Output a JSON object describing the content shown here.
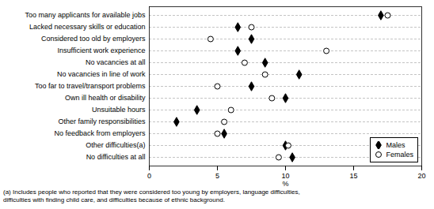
{
  "chart_data": {
    "type": "dot",
    "orientation": "horizontal",
    "categories": [
      "Too many applicants for available jobs",
      "Lacked necessary skills or education",
      "Considered too old by employers",
      "Insufficient work experience",
      "No vacancies at all",
      "No vacancies in line of work",
      "Too far to travel/transport problems",
      "Own ill health or disability",
      "Unsuitable hours",
      "Other family responsibilities",
      "No feedback from employers",
      "Other difficulties(a)",
      "No difficulties at all"
    ],
    "series": [
      {
        "name": "Males",
        "color": "black",
        "marker": "diamond",
        "values": [
          17.0,
          6.5,
          7.5,
          6.5,
          8.5,
          11.0,
          7.5,
          10.0,
          3.5,
          2.0,
          5.5,
          10.0,
          10.5
        ]
      },
      {
        "name": "Females",
        "color": "black",
        "marker": "open_circle",
        "values": [
          17.5,
          7.5,
          4.5,
          13.0,
          7.0,
          8.5,
          5.0,
          9.0,
          6.0,
          5.5,
          5.0,
          10.2,
          9.5
        ]
      }
    ],
    "xlabel": "%",
    "xlim": [
      0,
      20
    ],
    "xticks": [
      0,
      5,
      10,
      15,
      20
    ],
    "grid": true,
    "legend": "lower right",
    "caption": "(a) Includes people who reported that they were considered too young by employers, language difficulties,\ndifficulties with finding child care, and difficulties because of ethnic background."
  }
}
